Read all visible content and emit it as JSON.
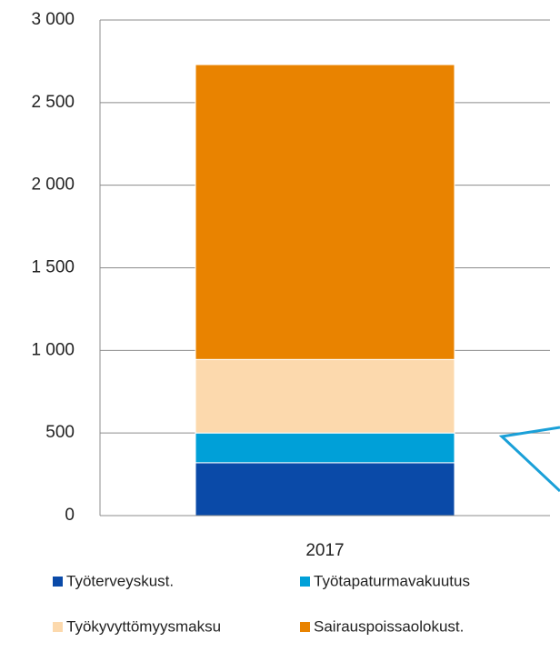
{
  "chart_data": {
    "type": "stacked_bar",
    "categories": [
      "2017"
    ],
    "series": [
      {
        "name": "Työterveyskust.",
        "color": "#0a4aa8",
        "values": [
          320
        ]
      },
      {
        "name": "Työtapaturmavakuutus",
        "color": "#00a0d8",
        "values": [
          180
        ]
      },
      {
        "name": "Työkyvyttömyysmaksu",
        "color": "#fcd9ad",
        "values": [
          445
        ]
      },
      {
        "name": "Sairauspoissaolokust.",
        "color": "#e98300",
        "values": [
          1785
        ]
      }
    ],
    "ylim": [
      0,
      3000
    ],
    "yticks": [
      0,
      500,
      {
        "value": 1000,
        "label": "1 000"
      },
      {
        "value": 1500,
        "label": "1 500"
      },
      {
        "value": 2000,
        "label": "2 000"
      },
      {
        "value": 2500,
        "label": "2 500"
      },
      {
        "value": 3000,
        "label": "3 000"
      }
    ],
    "grid": true
  }
}
